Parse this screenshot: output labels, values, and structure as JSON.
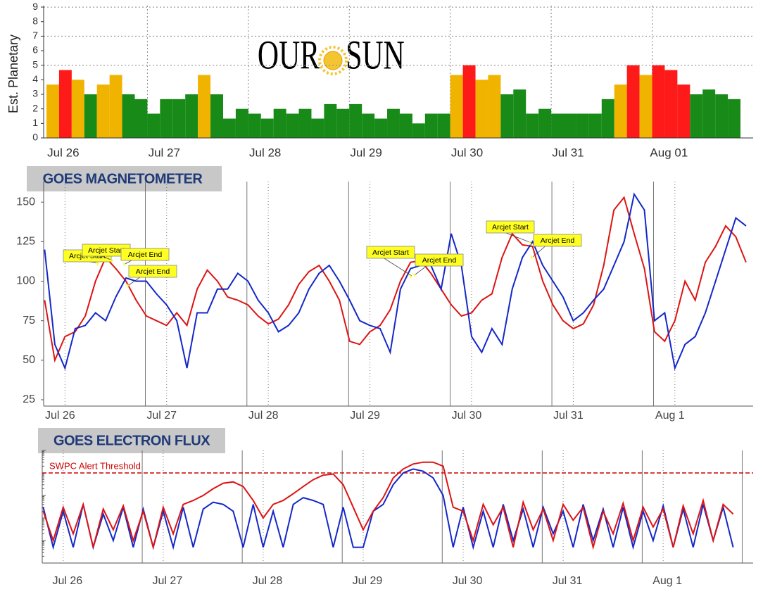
{
  "chart_data": [
    {
      "type": "bar",
      "y_label": "Est. Planetary",
      "logo": [
        "OUR",
        "SUN"
      ],
      "categories": [
        null,
        null,
        "Jul 26",
        null,
        null,
        null,
        null,
        null,
        null,
        null,
        "Jul 27",
        null,
        null,
        null,
        null,
        null,
        null,
        null,
        "Jul 28",
        null,
        null,
        null,
        null,
        null,
        null,
        null,
        "Jul 29",
        null,
        null,
        null,
        null,
        null,
        null,
        null,
        "Jul 30",
        null,
        null,
        null,
        null,
        null,
        null,
        null,
        "Jul 31",
        null,
        null,
        null,
        null,
        null,
        null,
        null,
        "Aug 01",
        null,
        null,
        null,
        null
      ],
      "values": [
        3.67,
        4.67,
        4,
        3,
        3.67,
        4.33,
        3,
        2.67,
        1.67,
        2.67,
        2.67,
        3,
        4.33,
        3,
        1.33,
        2,
        1.67,
        1.33,
        2,
        1.67,
        2,
        1.33,
        2.33,
        2,
        2.33,
        1.67,
        1.33,
        2,
        1.67,
        1,
        1.67,
        1.67,
        4.33,
        5,
        4,
        4.33,
        3,
        3.33,
        1.67,
        2,
        1.67,
        1.67,
        1.67,
        1.67,
        2.67,
        3.67,
        5,
        4.33,
        5,
        4.67,
        3.67,
        3,
        3.33,
        3,
        2.67
      ],
      "colors": [
        "#f0b400",
        "#ff1a1a",
        "#f0b400",
        "#178a17",
        "#f0b400",
        "#f0b400",
        "#178a17",
        "#178a17",
        "#178a17",
        "#178a17",
        "#178a17",
        "#178a17",
        "#f0b400",
        "#178a17",
        "#178a17",
        "#178a17",
        "#178a17",
        "#178a17",
        "#178a17",
        "#178a17",
        "#178a17",
        "#178a17",
        "#178a17",
        "#178a17",
        "#178a17",
        "#178a17",
        "#178a17",
        "#178a17",
        "#178a17",
        "#178a17",
        "#178a17",
        "#178a17",
        "#f0b400",
        "#ff1a1a",
        "#f0b400",
        "#f0b400",
        "#178a17",
        "#178a17",
        "#178a17",
        "#178a17",
        "#178a17",
        "#178a17",
        "#178a17",
        "#178a17",
        "#178a17",
        "#f0b400",
        "#ff1a1a",
        "#f0b400",
        "#ff1a1a",
        "#ff1a1a",
        "#ff1a1a",
        "#178a17",
        "#178a17",
        "#178a17",
        "#178a17"
      ],
      "ylim": [
        0,
        9.1
      ],
      "yticks": [
        0,
        1,
        2,
        3,
        4,
        5,
        6,
        7,
        8,
        9
      ],
      "ygrid": [
        5,
        7,
        9
      ]
    },
    {
      "type": "line",
      "title": "GOES MAGNETOMETER",
      "x": [
        -0.2,
        -0.1,
        0,
        0.1,
        0.2,
        0.3,
        0.4,
        0.5,
        0.6,
        0.7,
        0.8,
        0.9,
        1,
        1.1,
        1.2,
        1.3,
        1.4,
        1.5,
        1.6,
        1.7,
        1.8,
        1.9,
        2,
        2.1,
        2.2,
        2.3,
        2.4,
        2.5,
        2.6,
        2.7,
        2.8,
        2.9,
        3,
        3.1,
        3.2,
        3.3,
        3.4,
        3.5,
        3.6,
        3.7,
        3.8,
        3.9,
        4,
        4.1,
        4.2,
        4.3,
        4.4,
        4.5,
        4.6,
        4.7,
        4.8,
        4.9,
        5,
        5.1,
        5.2,
        5.3,
        5.4,
        5.5,
        5.6,
        5.7,
        5.8,
        5.9,
        6,
        6.1,
        6.2,
        6.3,
        6.4,
        6.5,
        6.6,
        6.7
      ],
      "series": [
        {
          "color": "#dd1414",
          "values": [
            88,
            50,
            65,
            68,
            78,
            100,
            115,
            108,
            100,
            88,
            78,
            75,
            72,
            80,
            72,
            95,
            107,
            100,
            90,
            88,
            85,
            78,
            73,
            76,
            85,
            98,
            106,
            110,
            100,
            88,
            62,
            60,
            68,
            72,
            82,
            100,
            112,
            113,
            105,
            95,
            85,
            78,
            80,
            88,
            92,
            115,
            130,
            123,
            122,
            100,
            85,
            75,
            70,
            73,
            85,
            110,
            145,
            153,
            130,
            108,
            68,
            62,
            75,
            100,
            88,
            112,
            122,
            135,
            128,
            112
          ]
        },
        {
          "color": "#1428c8",
          "values": [
            120,
            60,
            45,
            70,
            72,
            80,
            75,
            90,
            102,
            100,
            100,
            92,
            85,
            75,
            45,
            80,
            80,
            95,
            95,
            105,
            100,
            88,
            80,
            68,
            72,
            80,
            95,
            105,
            110,
            100,
            88,
            75,
            72,
            70,
            55,
            95,
            108,
            110,
            110,
            95,
            130,
            110,
            65,
            55,
            70,
            60,
            95,
            115,
            125,
            110,
            100,
            90,
            75,
            80,
            88,
            95,
            110,
            125,
            155,
            145,
            75,
            80,
            45,
            60,
            65,
            80,
            100,
            120,
            140,
            135
          ]
        }
      ],
      "annotations": [
        "Arcjet Start",
        "Arcjet Start",
        "Arcjet End",
        "Arcjet End",
        "Arcjet Start",
        "Arcjet End",
        "Arcjet Start",
        "Arcjet End"
      ],
      "xlim": [
        -0.21,
        6.77
      ],
      "xticks": [
        {
          "value": 0,
          "label": "Jul 26"
        },
        {
          "value": 1,
          "label": "Jul 27"
        },
        {
          "value": 2,
          "label": "Jul 28"
        },
        {
          "value": 3,
          "label": "Jul 29"
        },
        {
          "value": 4,
          "label": "Jul 30"
        },
        {
          "value": 5,
          "label": "Jul 31"
        },
        {
          "value": 6,
          "label": "Aug 1"
        }
      ],
      "ylim": [
        21,
        163
      ],
      "yticks": [
        25,
        50,
        75,
        100,
        125,
        150
      ]
    },
    {
      "type": "line",
      "title": "GOES ELECTRON FLUX",
      "log_scale": true,
      "threshold": 1000,
      "threshold_label": "SWPC Alert Threshold",
      "x": [
        -0.2,
        -0.1,
        0,
        0.1,
        0.2,
        0.3,
        0.4,
        0.5,
        0.6,
        0.7,
        0.8,
        0.9,
        1,
        1.1,
        1.2,
        1.3,
        1.4,
        1.5,
        1.6,
        1.7,
        1.8,
        1.9,
        2,
        2.1,
        2.2,
        2.3,
        2.4,
        2.5,
        2.6,
        2.7,
        2.8,
        2.9,
        3,
        3.1,
        3.2,
        3.3,
        3.4,
        3.5,
        3.6,
        3.7,
        3.8,
        3.9,
        4,
        4.1,
        4.2,
        4.3,
        4.4,
        4.5,
        4.6,
        4.7,
        4.8,
        4.9,
        5,
        5.1,
        5.2,
        5.3,
        5.4,
        5.5,
        5.6,
        5.7,
        5.8,
        5.9,
        6,
        6.1,
        6.2,
        6.3,
        6.4,
        6.5,
        6.6,
        6.7
      ],
      "series": [
        {
          "color": "#1428c8",
          "values": [
            30,
            0.5,
            20,
            0.5,
            40,
            0.5,
            15,
            1,
            30,
            0.5,
            25,
            0.5,
            20,
            0.5,
            30,
            0.5,
            25,
            50,
            40,
            20,
            0.5,
            40,
            0.5,
            20,
            0.5,
            40,
            80,
            60,
            40,
            0.5,
            30,
            0.5,
            0.5,
            20,
            40,
            300,
            1000,
            1500,
            1200,
            600,
            100,
            0.5,
            30,
            0.5,
            20,
            0.5,
            40,
            1,
            25,
            0.5,
            30,
            2,
            20,
            0.5,
            40,
            1,
            25,
            0.5,
            30,
            0.5,
            20,
            1,
            35,
            0.5,
            25,
            0.5,
            40,
            1,
            30,
            0.5
          ]
        },
        {
          "color": "#dd1414",
          "values": [
            20,
            1,
            30,
            2,
            40,
            0.5,
            25,
            3,
            35,
            1,
            20,
            0.5,
            30,
            2,
            40,
            60,
            100,
            200,
            350,
            400,
            250,
            60,
            10,
            40,
            60,
            120,
            250,
            500,
            800,
            900,
            300,
            30,
            3,
            20,
            80,
            600,
            1500,
            2500,
            3000,
            3000,
            2000,
            30,
            20,
            1,
            40,
            5,
            30,
            0.5,
            50,
            3,
            25,
            1,
            40,
            8,
            30,
            0.5,
            20,
            2,
            45,
            1,
            30,
            4,
            25,
            0.5,
            35,
            2,
            60,
            1,
            40,
            15
          ]
        }
      ],
      "xlim": [
        -0.21,
        6.9
      ],
      "xticks": [
        {
          "value": 0,
          "label": "Jul 26"
        },
        {
          "value": 1,
          "label": "Jul 27"
        },
        {
          "value": 2,
          "label": "Jul 28"
        },
        {
          "value": 3,
          "label": "Jul 29"
        },
        {
          "value": 4,
          "label": "Jul 30"
        },
        {
          "value": 5,
          "label": "Jul 31"
        },
        {
          "value": 6,
          "label": "Aug 1"
        }
      ],
      "ylim": [
        0.1,
        10000
      ]
    }
  ]
}
